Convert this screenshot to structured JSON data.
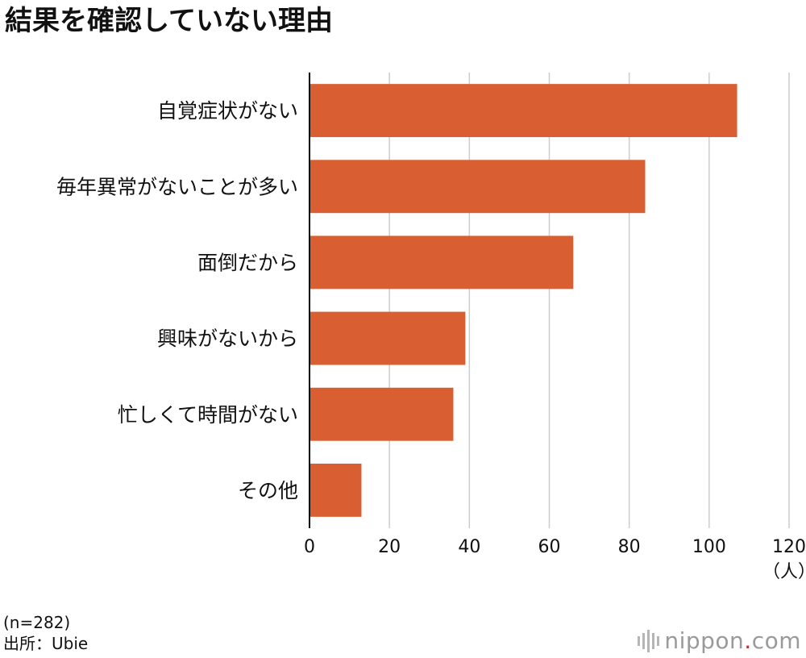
{
  "title": "結果を確認していない理由",
  "chart_data": {
    "type": "bar",
    "orientation": "horizontal",
    "title": "結果を確認していない理由",
    "categories": [
      "自覚症状がない",
      "毎年異常がないことが多い",
      "面倒だから",
      "興味がないから",
      "忙しくて時間がない",
      "その他"
    ],
    "values": [
      107,
      84,
      66,
      39,
      36,
      13
    ],
    "xlim": [
      0,
      120
    ],
    "xticks": [
      0,
      20,
      40,
      60,
      80,
      100,
      120
    ],
    "xunit": "（人）",
    "grid": true,
    "bar_color": "#d95f33",
    "grid_color": "#cccccc",
    "axis_color": "#000000"
  },
  "notes": {
    "sample": "(n=282)",
    "source": "出所：Ubie"
  },
  "logo": {
    "name": "nippon",
    "dot": ".",
    "suffix": "com",
    "dot_color": "#d9222a"
  }
}
